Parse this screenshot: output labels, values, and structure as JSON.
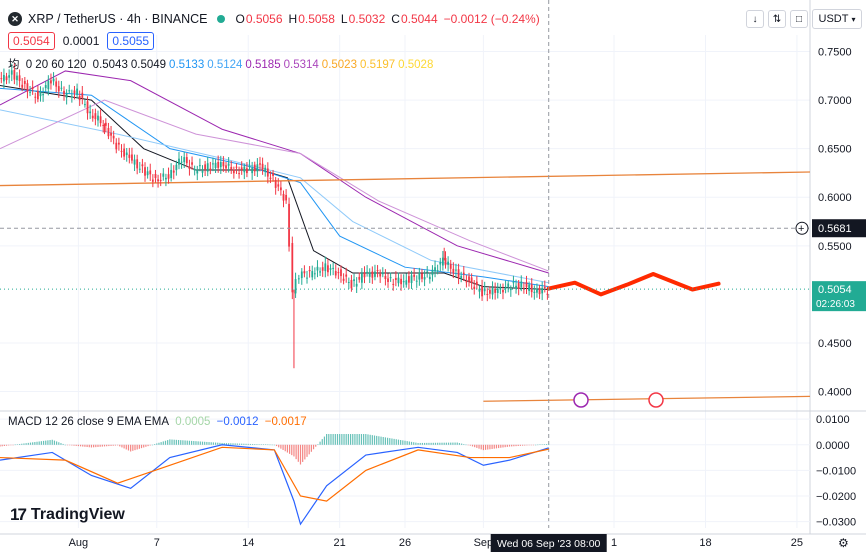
{
  "header": {
    "symbol": "XRP / TetherUS · 4h · BINANCE",
    "ohlc": [
      {
        "label": "O",
        "value": "0.5056"
      },
      {
        "label": "H",
        "value": "0.5058"
      },
      {
        "label": "L",
        "value": "0.5032"
      },
      {
        "label": "C",
        "value": "0.5044"
      }
    ],
    "change": "−0.0012 (−0.24%)",
    "up_color": "#22ab94",
    "down_color": "#f23645"
  },
  "price_box": {
    "sell": "0.5054",
    "spread": "0.0001",
    "buy": "0.5055"
  },
  "ma_legend": {
    "label": "均",
    "params": "0 20 60 120",
    "values": [
      {
        "value": "0.5043",
        "color": "#131722"
      },
      {
        "value": "0.5049",
        "color": "#131722"
      },
      {
        "value": "0.5133",
        "color": "#2196f3"
      },
      {
        "value": "0.5124",
        "color": "#42a5f5"
      },
      {
        "value": "0.5185",
        "color": "#9c27b0"
      },
      {
        "value": "0.5314",
        "color": "#ab47bc"
      },
      {
        "value": "0.5023",
        "color": "#f9a825"
      },
      {
        "value": "0.5197",
        "color": "#fbc02d"
      },
      {
        "value": "0.5028",
        "color": "#fdd835"
      }
    ]
  },
  "macd_legend": {
    "label": "MACD 12 26 close 9 EMA EMA",
    "hist": "0.0005",
    "macd": "−0.0012",
    "signal": "−0.0017",
    "hist_color": "#a5d6a7",
    "macd_color": "#2962ff",
    "signal_color": "#ff6d00"
  },
  "toolbar": {
    "down_icon": "↓",
    "collapse_icon": "⇅",
    "maximize_icon": "□",
    "currency": "USDT"
  },
  "price_axis": {
    "ticks": [
      {
        "value": 0.75,
        "label": "0.7500"
      },
      {
        "value": 0.7,
        "label": "0.7000"
      },
      {
        "value": 0.65,
        "label": "0.6500"
      },
      {
        "value": 0.6,
        "label": "0.6000"
      },
      {
        "value": 0.55,
        "label": "0.5500"
      },
      {
        "value": 0.45,
        "label": "0.4500"
      },
      {
        "value": 0.4,
        "label": "0.4000"
      }
    ],
    "crosshair_label": "0.5681",
    "crosshair_price": 0.5681,
    "last_price_label": "0.5054",
    "last_price": 0.5054,
    "countdown": "02:26:03",
    "range": [
      0.381,
      0.767
    ]
  },
  "macd_axis": {
    "ticks": [
      {
        "value": 0.01,
        "label": "0.0100"
      },
      {
        "value": 0.0,
        "label": "0.0000"
      },
      {
        "value": -0.01,
        "label": "−0.0100"
      },
      {
        "value": -0.02,
        "label": "−0.0200"
      },
      {
        "value": -0.03,
        "label": "−0.0300"
      }
    ],
    "range": [
      -0.0325,
      0.0128
    ]
  },
  "time_axis": {
    "labels": [
      "Aug",
      "7",
      "14",
      "21",
      "26",
      "Sep",
      "1",
      "18",
      "25"
    ],
    "crosshair_label": "Wed 06 Sep '23   08:00"
  },
  "brand": {
    "name": "TradingView"
  },
  "chart_data": {
    "type": "candlestick",
    "symbol": "XRPUSDT",
    "interval": "4h",
    "x_range": [
      "2023-07-26",
      "2023-09-26"
    ],
    "price_range": [
      0.381,
      0.767
    ],
    "price_path": [
      [
        "2023-07-26",
        0.72
      ],
      [
        "2023-07-27",
        0.727
      ],
      [
        "2023-07-28",
        0.714
      ],
      [
        "2023-07-29",
        0.703
      ],
      [
        "2023-07-30",
        0.721
      ],
      [
        "2023-07-31",
        0.706
      ],
      [
        "2023-08-01",
        0.708
      ],
      [
        "2023-08-02",
        0.686
      ],
      [
        "2023-08-03",
        0.676
      ],
      [
        "2023-08-04",
        0.653
      ],
      [
        "2023-08-05",
        0.64
      ],
      [
        "2023-08-06",
        0.628
      ],
      [
        "2023-08-07",
        0.618
      ],
      [
        "2023-08-08",
        0.622
      ],
      [
        "2023-08-09",
        0.64
      ],
      [
        "2023-08-10",
        0.628
      ],
      [
        "2023-08-11",
        0.631
      ],
      [
        "2023-08-12",
        0.635
      ],
      [
        "2023-08-13",
        0.628
      ],
      [
        "2023-08-14",
        0.628
      ],
      [
        "2023-08-15",
        0.632
      ],
      [
        "2023-08-16",
        0.618
      ],
      [
        "2023-08-17",
        0.596
      ],
      [
        "2023-08-17T12",
        0.505
      ],
      [
        "2023-08-18",
        0.52
      ],
      [
        "2023-08-19",
        0.522
      ],
      [
        "2023-08-20",
        0.528
      ],
      [
        "2023-08-21",
        0.522
      ],
      [
        "2023-08-22",
        0.51
      ],
      [
        "2023-08-23",
        0.52
      ],
      [
        "2023-08-24",
        0.522
      ],
      [
        "2023-08-25",
        0.514
      ],
      [
        "2023-08-26",
        0.514
      ],
      [
        "2023-08-27",
        0.518
      ],
      [
        "2023-08-28",
        0.52
      ],
      [
        "2023-08-29",
        0.535
      ],
      [
        "2023-08-30",
        0.522
      ],
      [
        "2023-08-31",
        0.514
      ],
      [
        "2023-09-01",
        0.502
      ],
      [
        "2023-09-02",
        0.503
      ],
      [
        "2023-09-03",
        0.508
      ],
      [
        "2023-09-04",
        0.51
      ],
      [
        "2023-09-05",
        0.504
      ],
      [
        "2023-09-06",
        0.5044
      ]
    ],
    "wicks": [
      {
        "x": "2023-08-03",
        "low": 0.665
      },
      {
        "x": "2023-08-17T12",
        "low": 0.424
      },
      {
        "x": "2023-08-29",
        "high": 0.548
      }
    ],
    "moving_averages": [
      {
        "color": "#131722",
        "points": [
          [
            "2023-07-26",
            0.715
          ],
          [
            "2023-08-02",
            0.7
          ],
          [
            "2023-08-06",
            0.65
          ],
          [
            "2023-08-10",
            0.628
          ],
          [
            "2023-08-15",
            0.628
          ],
          [
            "2023-08-17",
            0.62
          ],
          [
            "2023-08-19",
            0.545
          ],
          [
            "2023-08-22",
            0.522
          ],
          [
            "2023-08-29",
            0.522
          ],
          [
            "2023-09-01",
            0.508
          ],
          [
            "2023-09-06",
            0.505
          ]
        ]
      },
      {
        "color": "#2196f3",
        "points": [
          [
            "2023-07-26",
            0.712
          ],
          [
            "2023-08-02",
            0.705
          ],
          [
            "2023-08-08",
            0.65
          ],
          [
            "2023-08-14",
            0.632
          ],
          [
            "2023-08-18",
            0.615
          ],
          [
            "2023-08-21",
            0.56
          ],
          [
            "2023-08-26",
            0.528
          ],
          [
            "2023-09-01",
            0.518
          ],
          [
            "2023-09-06",
            0.508
          ]
        ]
      },
      {
        "color": "#90caf9",
        "points": [
          [
            "2023-07-26",
            0.69
          ],
          [
            "2023-08-04",
            0.665
          ],
          [
            "2023-08-12",
            0.64
          ],
          [
            "2023-08-18",
            0.62
          ],
          [
            "2023-08-22",
            0.575
          ],
          [
            "2023-08-28",
            0.535
          ],
          [
            "2023-09-06",
            0.512
          ]
        ]
      },
      {
        "color": "#9c27b0",
        "points": [
          [
            "2023-07-26",
            0.695
          ],
          [
            "2023-07-31",
            0.73
          ],
          [
            "2023-08-05",
            0.72
          ],
          [
            "2023-08-12",
            0.67
          ],
          [
            "2023-08-18",
            0.645
          ],
          [
            "2023-08-23",
            0.6
          ],
          [
            "2023-08-30",
            0.55
          ],
          [
            "2023-09-06",
            0.522
          ]
        ]
      },
      {
        "color": "#ce93d8",
        "points": [
          [
            "2023-07-26",
            0.65
          ],
          [
            "2023-08-03",
            0.7
          ],
          [
            "2023-08-10",
            0.665
          ],
          [
            "2023-08-18",
            0.645
          ],
          [
            "2023-08-24",
            0.596
          ],
          [
            "2023-08-31",
            0.555
          ],
          [
            "2023-09-06",
            0.524
          ]
        ]
      }
    ],
    "horizontal_line": {
      "from": [
        "2023-07-26",
        0.612
      ],
      "to": [
        "2023-09-26",
        0.626
      ],
      "color": "#e8843c"
    },
    "support_line": {
      "from": [
        "2023-09-01",
        0.39
      ],
      "to": [
        "2023-09-26",
        0.395
      ],
      "color": "#e8843c"
    },
    "projection": {
      "color": "#ff2a00",
      "points": [
        [
          "2023-09-06",
          0.506
        ],
        [
          "2023-09-08",
          0.512
        ],
        [
          "2023-09-10",
          0.5
        ],
        [
          "2023-09-12",
          0.51
        ],
        [
          "2023-09-14",
          0.521
        ],
        [
          "2023-09-17",
          0.505
        ],
        [
          "2023-09-19",
          0.511
        ]
      ]
    },
    "event_markers": [
      {
        "x": "2023-09-06",
        "kind": "lightning-icon"
      },
      {
        "x": "2023-09-14",
        "kind": "us-flag-icon"
      }
    ],
    "macd": {
      "range": [
        -0.0325,
        0.0128
      ],
      "macd_line": [
        [
          "2023-07-26",
          -0.006
        ],
        [
          "2023-07-30",
          -0.003
        ],
        [
          "2023-08-02",
          -0.012
        ],
        [
          "2023-08-05",
          -0.017
        ],
        [
          "2023-08-08",
          -0.005
        ],
        [
          "2023-08-12",
          0.0
        ],
        [
          "2023-08-16",
          -0.002
        ],
        [
          "2023-08-17T12",
          -0.022
        ],
        [
          "2023-08-18",
          -0.031
        ],
        [
          "2023-08-20",
          -0.016
        ],
        [
          "2023-08-23",
          -0.004
        ],
        [
          "2023-08-27",
          -0.001
        ],
        [
          "2023-08-30",
          -0.003
        ],
        [
          "2023-09-01",
          -0.008
        ],
        [
          "2023-09-03",
          -0.006
        ],
        [
          "2023-09-06",
          -0.0012
        ]
      ],
      "signal_line": [
        [
          "2023-07-26",
          -0.005
        ],
        [
          "2023-07-31",
          -0.006
        ],
        [
          "2023-08-04",
          -0.015
        ],
        [
          "2023-08-08",
          -0.008
        ],
        [
          "2023-08-12",
          -0.001
        ],
        [
          "2023-08-16",
          -0.002
        ],
        [
          "2023-08-18",
          -0.02
        ],
        [
          "2023-08-20",
          -0.022
        ],
        [
          "2023-08-23",
          -0.01
        ],
        [
          "2023-08-27",
          -0.002
        ],
        [
          "2023-08-31",
          -0.005
        ],
        [
          "2023-09-03",
          -0.005
        ],
        [
          "2023-09-06",
          -0.0017
        ]
      ]
    }
  }
}
